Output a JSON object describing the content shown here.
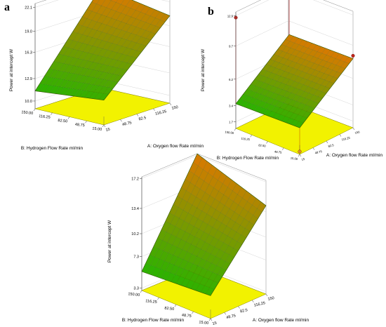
{
  "chart_data": [
    {
      "type": "surface3d",
      "panel_label": "a",
      "zlabel": "Power at intercept W",
      "xlabel": "A: Oxygen flow Rate ml/min",
      "ylabel": "B: Hydrogen Flow Rate ml/min",
      "z_ticks": [
        "10.0",
        "12.9",
        "16.3",
        "19.0",
        "22.1"
      ],
      "x_ticks": [
        "15",
        "48.75",
        "82.5",
        "116.25",
        "150"
      ],
      "y_ticks": [
        "15.00",
        "48.75",
        "82.50",
        "116.25",
        "150.00"
      ],
      "zlim": [
        9.0,
        22.6
      ],
      "surface_corners": {
        "x15_y15": 12.2,
        "x150_y15": 20.3,
        "x15_y150": 11.3,
        "x150_y150": 21.9
      },
      "design_points": []
    },
    {
      "type": "surface3d",
      "panel_label": "b",
      "zlabel": "Power at intercept W",
      "xlabel": "A: Oxygen flow Rate ml/min",
      "ylabel": "B: Hydrogen Flow Rate ml/min",
      "z_ticks": [
        "1.7",
        "3.4",
        "6.2",
        "9.7",
        "12.9"
      ],
      "x_ticks": [
        "15",
        "48.75",
        "82.5",
        "116.25",
        "150"
      ],
      "y_ticks": [
        "15.00",
        "48.75",
        "82.50",
        "116.25",
        "150.00"
      ],
      "zlim": [
        1.0,
        13.3
      ],
      "surface_corners": {
        "x15_y15": 3.8,
        "x150_y15": 8.3,
        "x15_y150": 3.6,
        "x150_y150": 8.1
      },
      "design_points": [
        {
          "x": 150,
          "y": 15,
          "z": 8.6
        },
        {
          "x": 150,
          "y": 150,
          "z": 12.9
        },
        {
          "x": 15,
          "y": 150,
          "z": 12.7
        },
        {
          "x": 15,
          "y": 15,
          "z": 1.3
        }
      ]
    },
    {
      "type": "surface3d",
      "panel_label": "c",
      "zlabel": "Power at intercept W",
      "xlabel": "A: Oxygen flow Rate ml/min",
      "ylabel": "B: Hydrogen Flow Rate ml/min",
      "z_ticks": [
        "3.3",
        "7.3",
        "10.2",
        "13.4",
        "17.2"
      ],
      "x_ticks": [
        "15",
        "48.75",
        "82.5",
        "116.25",
        "150"
      ],
      "y_ticks": [
        "15.00",
        "48.75",
        "82.50",
        "116.25",
        "150.00"
      ],
      "zlim": [
        3.0,
        17.4
      ],
      "surface_corners": {
        "x15_y15": 5.9,
        "x150_y15": 14.2,
        "x15_y150": 5.4,
        "x150_y150": 17.2
      },
      "design_points": []
    }
  ]
}
